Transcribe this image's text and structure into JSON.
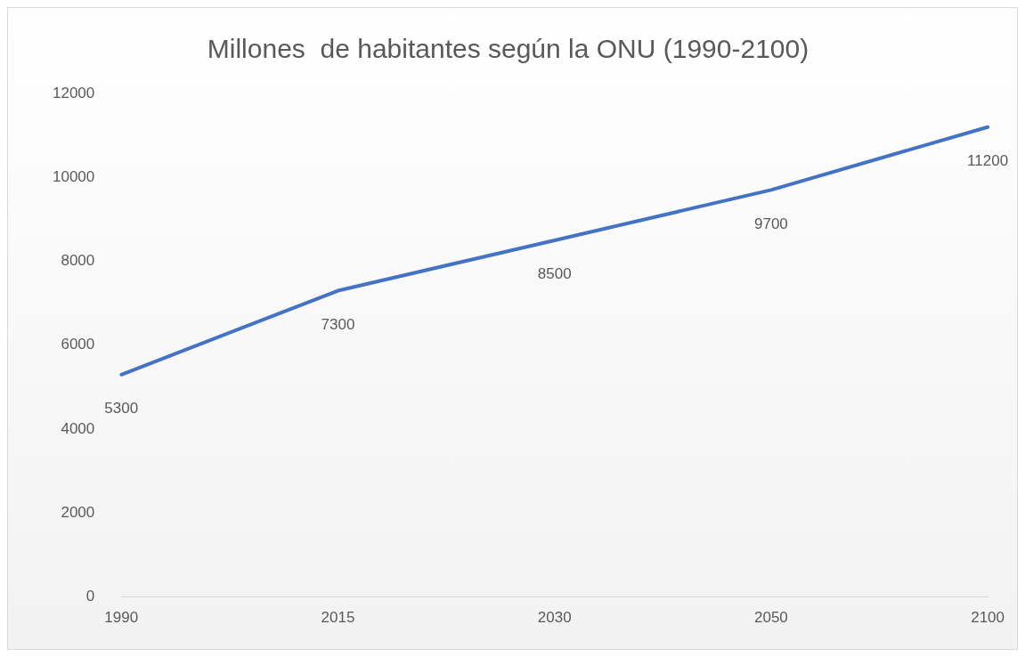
{
  "chart_data": {
    "type": "line",
    "title": "Millones  de habitantes según la ONU (1990-2100)",
    "categories": [
      "1990",
      "2015",
      "2030",
      "2050",
      "2100"
    ],
    "series": [
      {
        "color": "#4472c4",
        "values": [
          5300,
          7300,
          8500,
          9700,
          11200
        ]
      }
    ],
    "ylim": [
      0,
      12000
    ],
    "yticks": [
      0,
      2000,
      4000,
      6000,
      8000,
      10000,
      12000
    ],
    "grid": false,
    "legend": false,
    "marker": "none",
    "line_style": "solid",
    "data_labels": true
  }
}
